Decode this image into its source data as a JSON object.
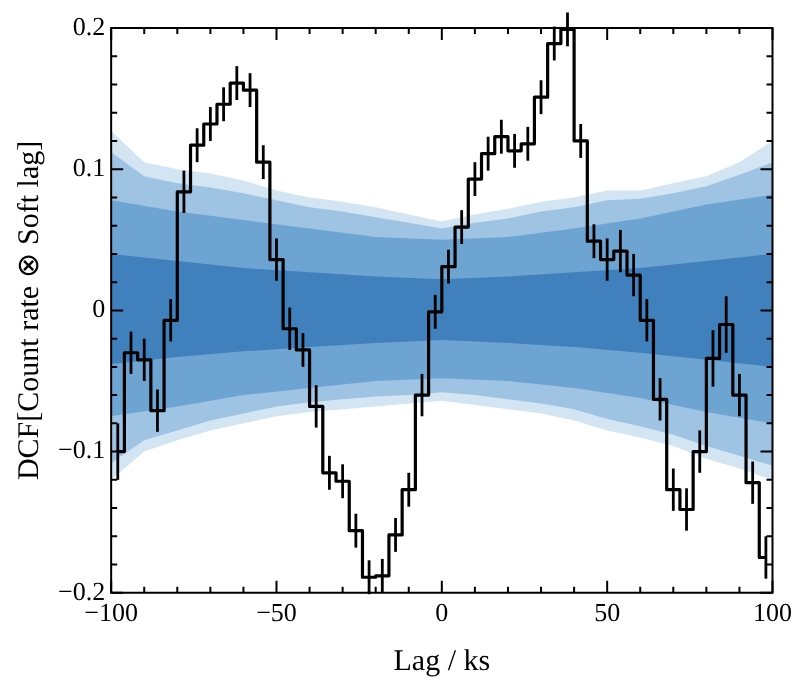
{
  "chart_data": {
    "type": "step",
    "xlabel": "Lag / ks",
    "ylabel": "DCF[Count rate ⊗ Soft lag]",
    "xlim": [
      -100,
      100
    ],
    "ylim": [
      -0.2,
      0.2
    ],
    "xticks": [
      {
        "value": -100,
        "label": "−100"
      },
      {
        "value": -90,
        "label": null
      },
      {
        "value": -80,
        "label": null
      },
      {
        "value": -70,
        "label": null
      },
      {
        "value": -60,
        "label": null
      },
      {
        "value": -50,
        "label": "−50"
      },
      {
        "value": -40,
        "label": null
      },
      {
        "value": -30,
        "label": null
      },
      {
        "value": -20,
        "label": null
      },
      {
        "value": -10,
        "label": null
      },
      0,
      {
        "value": 10,
        "label": null
      },
      {
        "value": 20,
        "label": null
      },
      {
        "value": 30,
        "label": null
      },
      {
        "value": 40,
        "label": null
      },
      50,
      {
        "value": 60,
        "label": null
      },
      {
        "value": 70,
        "label": null
      },
      {
        "value": 80,
        "label": null
      },
      {
        "value": 90,
        "label": null
      },
      100
    ],
    "yticks": [
      {
        "value": -0.2,
        "label": "−0.2"
      },
      {
        "value": -0.18,
        "label": null
      },
      {
        "value": -0.16,
        "label": null
      },
      {
        "value": -0.14,
        "label": null
      },
      {
        "value": -0.12,
        "label": null
      },
      {
        "value": -0.1,
        "label": "−0.1"
      },
      {
        "value": -0.08,
        "label": null
      },
      {
        "value": -0.06,
        "label": null
      },
      {
        "value": -0.04,
        "label": null
      },
      {
        "value": -0.02,
        "label": null
      },
      0,
      {
        "value": 0.02,
        "label": null
      },
      {
        "value": 0.04,
        "label": null
      },
      {
        "value": 0.06,
        "label": null
      },
      {
        "value": 0.08,
        "label": null
      },
      0.1,
      {
        "value": 0.12,
        "label": null
      },
      {
        "value": 0.14,
        "label": null
      },
      {
        "value": 0.16,
        "label": null
      },
      {
        "value": 0.18,
        "label": null
      },
      0.2
    ],
    "grid": false,
    "legend": false,
    "series": [
      {
        "type": "area",
        "color": "#d3e4f3",
        "x": [
          -100,
          -90,
          -80,
          -70,
          -60,
          -50,
          -40,
          -30,
          -20,
          -10,
          0,
          10,
          20,
          30,
          40,
          50,
          60,
          70,
          80,
          90,
          100
        ],
        "values": [
          null,
          null,
          null,
          null,
          null,
          null,
          null,
          null,
          null,
          null,
          null,
          null,
          null,
          null,
          null,
          null,
          null,
          null,
          null,
          null,
          null
        ],
        "upper": [
          0.127,
          0.105,
          0.1,
          0.097,
          0.092,
          0.085,
          0.08,
          0.077,
          0.073,
          0.068,
          0.063,
          0.068,
          0.072,
          0.077,
          0.08,
          0.085,
          0.085,
          0.09,
          0.095,
          0.105,
          0.12
        ],
        "lower": [
          -0.12,
          -0.1,
          -0.092,
          -0.085,
          -0.08,
          -0.075,
          -0.072,
          -0.07,
          -0.068,
          -0.066,
          -0.064,
          -0.067,
          -0.07,
          -0.073,
          -0.078,
          -0.085,
          -0.09,
          -0.096,
          -0.105,
          -0.112,
          -0.12
        ]
      },
      {
        "type": "area",
        "color": "#9fc3e3",
        "x": [
          -100,
          -90,
          -80,
          -70,
          -60,
          -50,
          -40,
          -30,
          -20,
          -10,
          0,
          10,
          20,
          30,
          40,
          50,
          60,
          70,
          80,
          90,
          100
        ],
        "values": [
          null,
          null,
          null,
          null,
          null,
          null,
          null,
          null,
          null,
          null,
          null,
          null,
          null,
          null,
          null,
          null,
          null,
          null,
          null,
          null,
          null
        ],
        "upper": [
          0.112,
          0.095,
          0.09,
          0.087,
          0.083,
          0.078,
          0.073,
          0.07,
          0.066,
          0.062,
          0.058,
          0.062,
          0.065,
          0.07,
          0.073,
          0.078,
          0.079,
          0.083,
          0.088,
          0.096,
          0.105
        ],
        "lower": [
          -0.108,
          -0.092,
          -0.085,
          -0.078,
          -0.073,
          -0.068,
          -0.065,
          -0.063,
          -0.061,
          -0.06,
          -0.058,
          -0.06,
          -0.063,
          -0.066,
          -0.07,
          -0.077,
          -0.082,
          -0.088,
          -0.096,
          -0.103,
          -0.11
        ]
      },
      {
        "type": "area",
        "color": "#6ea4d2",
        "x": [
          -100,
          -80,
          -60,
          -40,
          -20,
          0,
          20,
          40,
          60,
          80,
          100
        ],
        "values": [
          null,
          null,
          null,
          null,
          null,
          null,
          null,
          null,
          null,
          null,
          null
        ],
        "upper": [
          0.078,
          0.07,
          0.064,
          0.058,
          0.052,
          0.05,
          0.052,
          0.058,
          0.065,
          0.075,
          0.082
        ],
        "lower": [
          -0.075,
          -0.068,
          -0.06,
          -0.055,
          -0.05,
          -0.048,
          -0.05,
          -0.055,
          -0.062,
          -0.072,
          -0.08
        ]
      },
      {
        "type": "area",
        "color": "#3f80bd",
        "x": [
          -100,
          -80,
          -60,
          -40,
          -20,
          0,
          20,
          40,
          60,
          80,
          100
        ],
        "values": [
          null,
          null,
          null,
          null,
          null,
          null,
          null,
          null,
          null,
          null,
          null
        ],
        "upper": [
          0.04,
          0.035,
          0.03,
          0.027,
          0.024,
          0.022,
          0.024,
          0.027,
          0.03,
          0.035,
          0.04
        ],
        "lower": [
          -0.038,
          -0.033,
          -0.029,
          -0.026,
          -0.023,
          -0.021,
          -0.023,
          -0.026,
          -0.03,
          -0.035,
          -0.04
        ]
      },
      {
        "color": "#000000",
        "x": [
          -98,
          -94,
          -90,
          -86,
          -82,
          -78,
          -74,
          -70,
          -66,
          -62,
          -58,
          -54,
          -50,
          -46,
          -42,
          -38,
          -34,
          -30,
          -26,
          -22,
          -18,
          -14,
          -10,
          -6,
          -2,
          2,
          6,
          10,
          14,
          18,
          22,
          26,
          30,
          34,
          38,
          42,
          46,
          50,
          54,
          58,
          62,
          66,
          70,
          74,
          78,
          82,
          86,
          90,
          94,
          98
        ],
        "values": [
          -0.1,
          -0.03,
          -0.035,
          -0.071,
          -0.007,
          0.084,
          0.117,
          0.132,
          0.146,
          0.161,
          0.156,
          0.105,
          0.036,
          -0.013,
          -0.028,
          -0.068,
          -0.115,
          -0.121,
          -0.156,
          -0.189,
          -0.188,
          -0.159,
          -0.127,
          -0.06,
          -0.001,
          0.031,
          0.059,
          0.093,
          0.111,
          0.123,
          0.113,
          0.118,
          0.151,
          0.189,
          0.199,
          0.12,
          0.049,
          0.036,
          0.042,
          0.025,
          -0.007,
          -0.063,
          -0.127,
          -0.141,
          -0.1,
          -0.034,
          -0.01,
          -0.06,
          -0.122,
          -0.175
        ],
        "errors": [
          0.02,
          0.015,
          0.015,
          0.015,
          0.015,
          0.015,
          0.012,
          0.012,
          0.012,
          0.012,
          0.012,
          0.012,
          0.015,
          0.015,
          0.012,
          0.015,
          0.012,
          0.012,
          0.012,
          0.012,
          0.012,
          0.012,
          0.012,
          0.015,
          0.012,
          0.012,
          0.012,
          0.012,
          0.012,
          0.012,
          0.012,
          0.012,
          0.012,
          0.012,
          0.012,
          0.012,
          0.012,
          0.015,
          0.015,
          0.015,
          0.015,
          0.015,
          0.015,
          0.015,
          0.015,
          0.02,
          0.02,
          0.015,
          0.015,
          0.015
        ]
      }
    ]
  }
}
